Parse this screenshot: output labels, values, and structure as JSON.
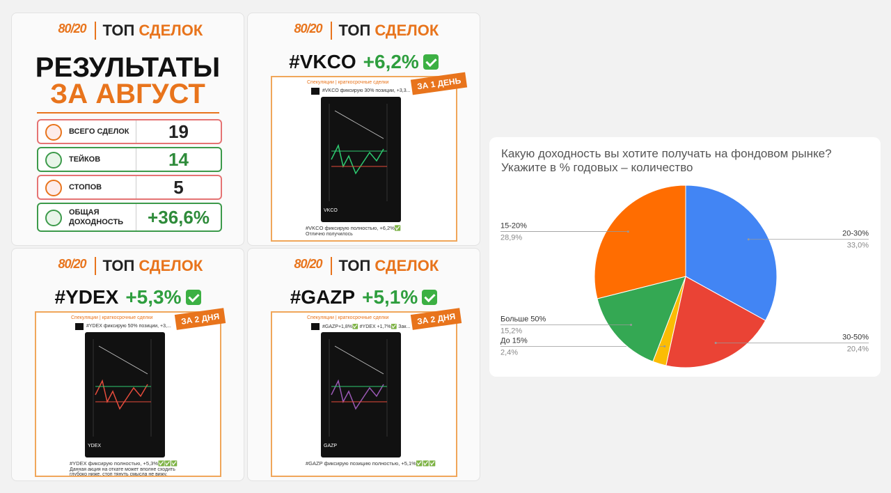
{
  "results_card": {
    "logo": "80/20",
    "brand": "ТОП",
    "brand_accent": "СДЕЛОК",
    "title": "РЕЗУЛЬТАТЫ",
    "subtitle": "ЗА АВГУСТ",
    "rows": [
      {
        "label": "ВСЕГО СДЕЛОК",
        "value": "19"
      },
      {
        "label": "ТЕЙКОВ",
        "value": "14"
      },
      {
        "label": "СТОПОВ",
        "value": "5"
      },
      {
        "label": "ОБЩАЯ ДОХОДНОСТЬ",
        "value": "+36,6%"
      }
    ]
  },
  "trade_cards": [
    {
      "logo": "80/20",
      "brand": "ТОП",
      "brand_accent": "СДЕЛОК",
      "ticker": "#VKCO",
      "change": "+6,2%",
      "badge": "ЗА 1 ДЕНЬ",
      "channel": "Спекуляции | краткосрочные сделки",
      "quote": "#VKCO фиксирую 30% позиции, +3,3...",
      "caption": "#VKCO фиксирую полностью, +6,2%✅",
      "comment": "Отлично получилось",
      "chart_ticker": "VKCO"
    },
    {
      "logo": "80/20",
      "brand": "ТОП",
      "brand_accent": "СДЕЛОК",
      "ticker": "#YDEX",
      "change": "+5,3%",
      "badge": "ЗА 2 ДНЯ",
      "channel": "Спекуляции | краткосрочные сделки",
      "quote": "#YDEX фиксирую 50% позиции, +3,...",
      "caption": "#YDEX фиксирую полностью, +5,3%✅✅✅",
      "comment": "Данная акция на откате может вполне сходить глубоко ниже, стоп тянуть смысла не вижу, очень легкая, поэтому прибыль есть, на забор.",
      "chart_ticker": "YDEX"
    },
    {
      "logo": "80/20",
      "brand": "ТОП",
      "brand_accent": "СДЕЛОК",
      "ticker": "#GAZP",
      "change": "+5,1%",
      "badge": "ЗА 2 ДНЯ",
      "channel": "Спекуляции | краткосрочные сделки",
      "quote": "#GAZP+1,8%✅ #YDEX +1,7%✅ Зак...",
      "caption": "#GAZP фиксирую позицию полностью, +5,1%✅✅✅",
      "chart_ticker": "GAZP"
    }
  ],
  "chart_data": {
    "type": "pie",
    "title": "Какую доходность вы хотите получать на фондовом рынке? Укажите в % годовых – количество",
    "categories": [
      "20-30%",
      "30-50%",
      "До 15%",
      "Больше 50%",
      "15-20%"
    ],
    "values": [
      33.0,
      20.4,
      2.4,
      15.2,
      28.9
    ],
    "value_labels": [
      "33,0%",
      "20,4%",
      "2,4%",
      "15,2%",
      "28,9%"
    ],
    "colors": [
      "#4285f4",
      "#ea4335",
      "#fbbc04",
      "#34a853",
      "#ff6d01"
    ]
  }
}
